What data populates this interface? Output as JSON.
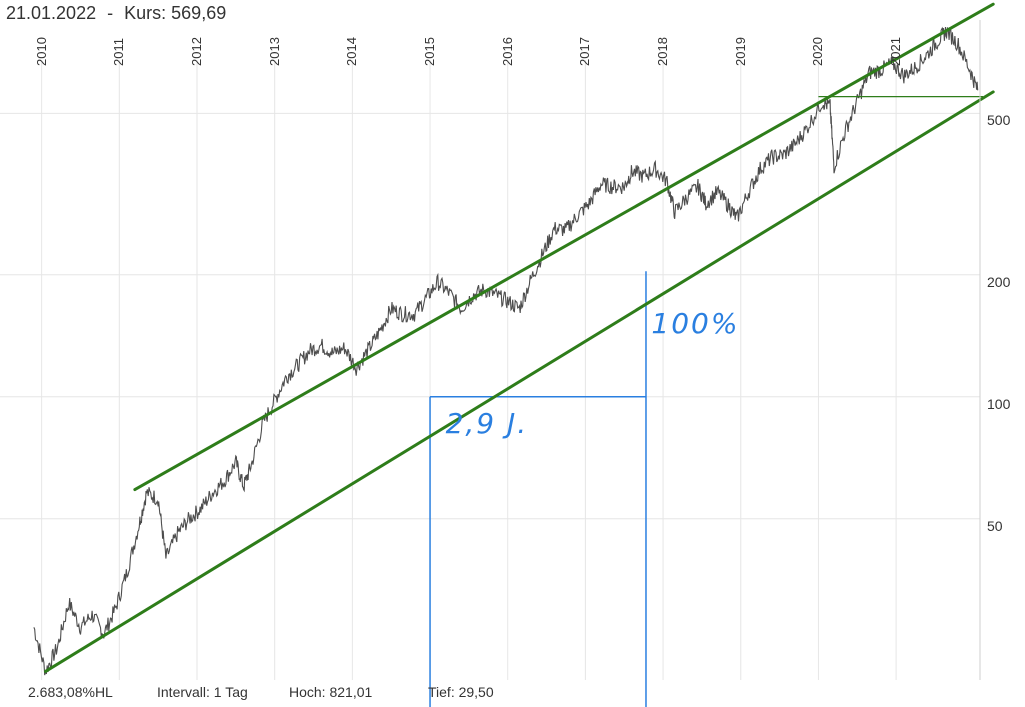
{
  "header": {
    "date": "21.01.2022",
    "separator": "-",
    "price_label": "Kurs:",
    "price_value": "569,69"
  },
  "footer": {
    "change": "2.683,08%HL",
    "interval": "Intervall: 1 Tag",
    "high": "Hoch:  821,01",
    "low": "Tief:  29,50"
  },
  "colors": {
    "price_line": "#4d4d4d",
    "channel_line": "#2e7d1a",
    "annotation": "#2a7fe0",
    "grid": "#e6e6e6"
  },
  "chart_data": {
    "type": "line",
    "y_scale": "log",
    "ylim": [
      20,
      850
    ],
    "xlim": [
      2009.85,
      2022.08
    ],
    "y_ticks": [
      50,
      100,
      200,
      500
    ],
    "y_tick_labels": [
      "50",
      "100",
      "200",
      "500"
    ],
    "x_ticks": [
      2010,
      2011,
      2012,
      2013,
      2014,
      2015,
      2016,
      2017,
      2018,
      2019,
      2020,
      2021
    ],
    "x_tick_labels": [
      "2010",
      "2011",
      "2012",
      "2013",
      "2014",
      "2015",
      "2016",
      "2017",
      "2018",
      "2019",
      "2020",
      "2021"
    ],
    "grid": true,
    "series": [
      {
        "key": "price",
        "points": [
          [
            2009.9,
            27
          ],
          [
            2010.05,
            21
          ],
          [
            2010.2,
            24
          ],
          [
            2010.35,
            31
          ],
          [
            2010.5,
            27
          ],
          [
            2010.65,
            29
          ],
          [
            2010.8,
            26
          ],
          [
            2010.95,
            30
          ],
          [
            2011.1,
            37
          ],
          [
            2011.25,
            48
          ],
          [
            2011.35,
            58
          ],
          [
            2011.5,
            56
          ],
          [
            2011.6,
            40
          ],
          [
            2011.75,
            46
          ],
          [
            2011.9,
            50
          ],
          [
            2012.05,
            53
          ],
          [
            2012.2,
            58
          ],
          [
            2012.35,
            62
          ],
          [
            2012.5,
            69
          ],
          [
            2012.6,
            60
          ],
          [
            2012.7,
            68
          ],
          [
            2012.85,
            86
          ],
          [
            2013.0,
            98
          ],
          [
            2013.15,
            112
          ],
          [
            2013.3,
            120
          ],
          [
            2013.45,
            130
          ],
          [
            2013.6,
            134
          ],
          [
            2013.75,
            128
          ],
          [
            2013.9,
            132
          ],
          [
            2014.05,
            118
          ],
          [
            2014.2,
            130
          ],
          [
            2014.35,
            145
          ],
          [
            2014.5,
            165
          ],
          [
            2014.65,
            160
          ],
          [
            2014.8,
            160
          ],
          [
            2014.95,
            175
          ],
          [
            2015.1,
            192
          ],
          [
            2015.25,
            180
          ],
          [
            2015.4,
            165
          ],
          [
            2015.55,
            178
          ],
          [
            2015.7,
            184
          ],
          [
            2015.85,
            178
          ],
          [
            2016.0,
            172
          ],
          [
            2016.15,
            165
          ],
          [
            2016.3,
            195
          ],
          [
            2016.45,
            225
          ],
          [
            2016.6,
            260
          ],
          [
            2016.75,
            258
          ],
          [
            2016.9,
            280
          ],
          [
            2017.05,
            300
          ],
          [
            2017.2,
            335
          ],
          [
            2017.35,
            330
          ],
          [
            2017.5,
            330
          ],
          [
            2017.6,
            360
          ],
          [
            2017.75,
            350
          ],
          [
            2017.9,
            365
          ],
          [
            2018.05,
            340
          ],
          [
            2018.15,
            285
          ],
          [
            2018.3,
            310
          ],
          [
            2018.45,
            330
          ],
          [
            2018.55,
            300
          ],
          [
            2018.7,
            320
          ],
          [
            2018.85,
            295
          ],
          [
            2018.95,
            275
          ],
          [
            2019.1,
            320
          ],
          [
            2019.25,
            365
          ],
          [
            2019.4,
            390
          ],
          [
            2019.55,
            395
          ],
          [
            2019.7,
            420
          ],
          [
            2019.85,
            460
          ],
          [
            2020.05,
            535
          ],
          [
            2020.15,
            520
          ],
          [
            2020.2,
            370
          ],
          [
            2020.35,
            455
          ],
          [
            2020.5,
            535
          ],
          [
            2020.65,
            630
          ],
          [
            2020.8,
            640
          ],
          [
            2020.95,
            665
          ],
          [
            2021.1,
            620
          ],
          [
            2021.25,
            650
          ],
          [
            2021.4,
            700
          ],
          [
            2021.55,
            760
          ],
          [
            2021.65,
            800
          ],
          [
            2021.8,
            740
          ],
          [
            2021.95,
            640
          ],
          [
            2022.05,
            570
          ]
        ]
      },
      {
        "key": "channel-upper",
        "points": [
          [
            2011.2,
            59
          ],
          [
            2022.25,
            930
          ]
        ]
      },
      {
        "key": "channel-lower",
        "points": [
          [
            2010.05,
            21
          ],
          [
            2022.25,
            565
          ]
        ]
      },
      {
        "key": "support-line",
        "points": [
          [
            2020.0,
            550
          ],
          [
            2022.12,
            550
          ]
        ]
      }
    ],
    "annotations": [
      {
        "text": "100%",
        "x": 2017.85,
        "y": 150
      },
      {
        "text": "2,9 J.",
        "x": 2015.2,
        "y": 85
      }
    ],
    "measure_lines": {
      "horizontal": {
        "from_x": 2015.0,
        "to_x": 2017.78,
        "y": 100
      },
      "vertical_left": {
        "x": 2015.0,
        "from_y": 100,
        "to_y": 20
      },
      "vertical_right": {
        "x": 2017.78,
        "from_y": 204,
        "to_y": 20
      }
    }
  }
}
